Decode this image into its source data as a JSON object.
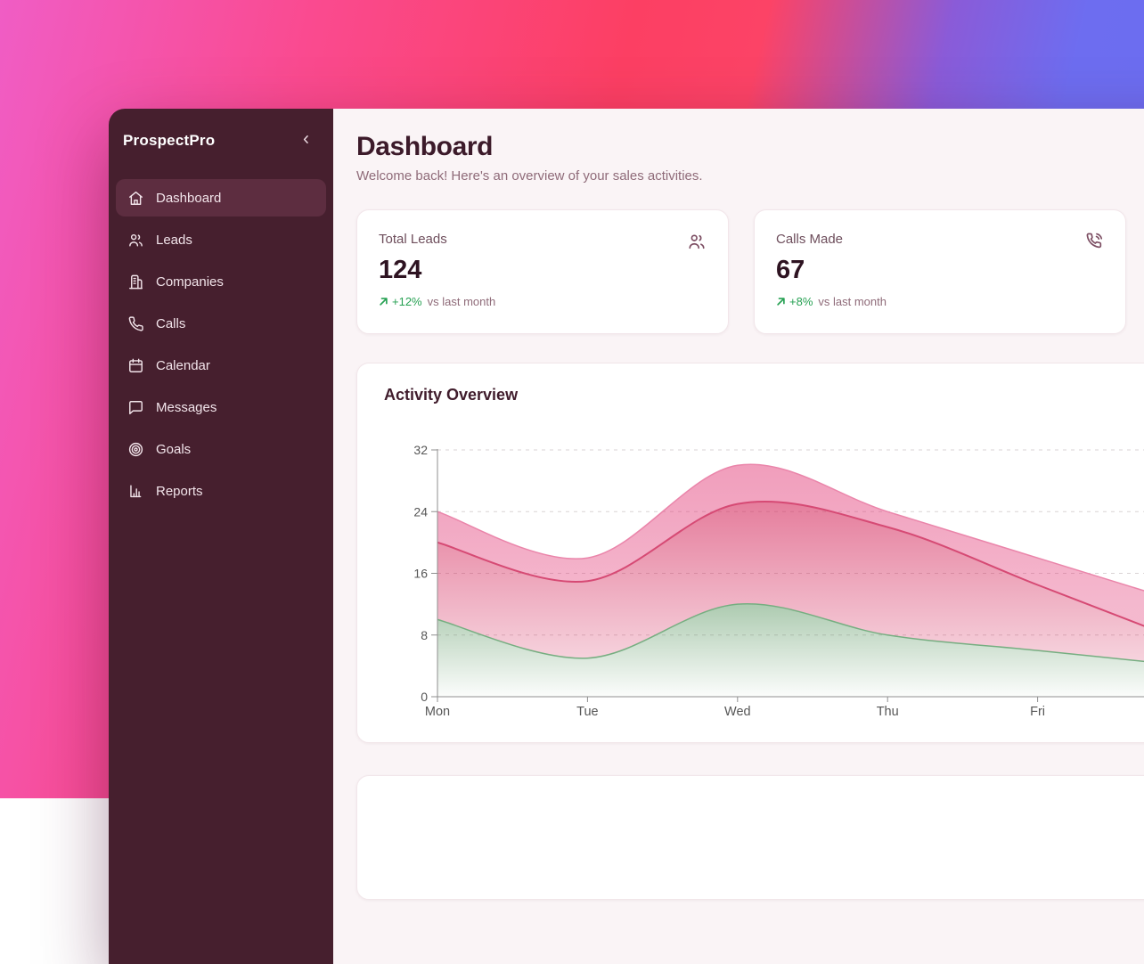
{
  "app": {
    "name": "ProspectPro",
    "collapse_icon": "chevron-left"
  },
  "sidebar": {
    "items": [
      {
        "label": "Dashboard",
        "icon": "home",
        "active": true
      },
      {
        "label": "Leads",
        "icon": "users",
        "active": false
      },
      {
        "label": "Companies",
        "icon": "building",
        "active": false
      },
      {
        "label": "Calls",
        "icon": "phone",
        "active": false
      },
      {
        "label": "Calendar",
        "icon": "calendar",
        "active": false
      },
      {
        "label": "Messages",
        "icon": "message-square",
        "active": false
      },
      {
        "label": "Goals",
        "icon": "target",
        "active": false
      },
      {
        "label": "Reports",
        "icon": "bar-chart",
        "active": false
      }
    ]
  },
  "header": {
    "title": "Dashboard",
    "subtitle": "Welcome back! Here's an overview of your sales activities."
  },
  "stats": [
    {
      "label": "Total Leads",
      "value": "124",
      "trend_pct": "+12%",
      "trend_suffix": "vs last month",
      "icon": "users"
    },
    {
      "label": "Calls Made",
      "value": "67",
      "trend_pct": "+8%",
      "trend_suffix": "vs last month",
      "icon": "phone-call"
    }
  ],
  "chart_data": {
    "type": "area",
    "stacked": true,
    "smooth": true,
    "title": "Activity Overview",
    "categories": [
      "Mon",
      "Tue",
      "Wed",
      "Thu",
      "Fri"
    ],
    "series": [
      {
        "name": "green-band",
        "color": "#5a9661",
        "values": [
          10,
          5,
          12,
          8,
          6
        ]
      },
      {
        "name": "rose-band",
        "color": "#d64a74",
        "values": [
          10,
          10,
          13,
          14,
          8.5
        ]
      },
      {
        "name": "pink-band",
        "color": "#ea85aa",
        "values": [
          4,
          3,
          5,
          2,
          3.5
        ]
      }
    ],
    "stack_tops": {
      "green-band": [
        10,
        5,
        12,
        8,
        6
      ],
      "rose-band": [
        20,
        15,
        25,
        22,
        14.5
      ],
      "pink-band": [
        24,
        18,
        30,
        24,
        18
      ]
    },
    "xlabel": "",
    "ylabel": "",
    "yticks": [
      0,
      8,
      16,
      24,
      32
    ],
    "ylim": [
      0,
      32
    ],
    "grid": "horizontal-dashed",
    "legend": "none",
    "clipped_right": true
  },
  "colors": {
    "background_gradient": [
      "#f05dc5",
      "#fb4a8f",
      "#fc3f63",
      "#6d6df0"
    ],
    "sidebar_bg": "#461f2e",
    "sidebar_active_bg": "#5d2d40",
    "content_bg": "#faf4f6",
    "card_bg": "#ffffff",
    "heading_text": "#3c1a2a",
    "muted_text": "#8f6b79",
    "trend_green": "#27a153"
  }
}
